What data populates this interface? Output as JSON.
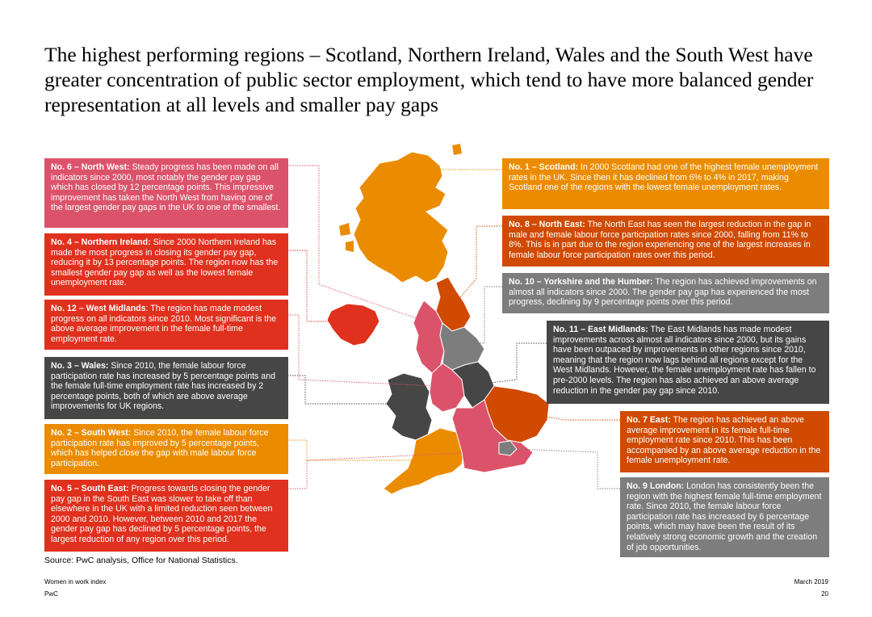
{
  "title": "The highest performing regions – Scotland, Northern Ireland, Wales and the South West have greater concentration of public sector employment, which tend to have more balanced gender representation at all levels and smaller pay gaps",
  "colors": {
    "pink": "#db536a",
    "red": "#e0301e",
    "dark_gray": "#464646",
    "orange": "#eb8c00",
    "rust": "#d04a02",
    "gray": "#7d7d7d"
  },
  "regions": {
    "north_west": {
      "heading": "No. 6 – North West:",
      "body": " Steady progress has been made on all indicators since 2000, most notably the gender pay gap which has closed by 12 percentage points. This impressive improvement has taken the North West from having one of the largest gender pay gaps in the UK to one of the smallest."
    },
    "northern_ireland": {
      "heading": "No. 4 – Northern Ireland:",
      "body": " Since 2000 Northern Ireland has made the most progress in closing its gender pay gap, reducing it by 13 percentage points. The region now has the smallest gender pay gap as well as the lowest female unemployment rate."
    },
    "west_midlands": {
      "heading": "No. 12 – West Midlands",
      "body": ": The region has made modest progress on all indicators since 2010. Most significant is the above average improvement in the female full-time employment rate."
    },
    "wales": {
      "heading": "No. 3 – Wales:",
      "body": " Since 2010, the female labour force participation rate has increased by 5 percentage points and the female full-time employment rate has increased by 2 percentage points, both of which are above average improvements for UK regions."
    },
    "south_west": {
      "heading": "No. 2 – South West:",
      "body": " Since 2010, the female labour force participation rate has improved by 5 percentage points, which has helped close the gap with male labour force participation."
    },
    "south_east": {
      "heading": "No. 5 – South East:",
      "body": " Progress towards closing the gender pay gap in the South East was slower to take off than elsewhere in the UK with a limited reduction seen between 2000 and 2010. However, between 2010 and 2017 the gender pay gap has declined by 5 percentage points, the largest reduction of any region over this period."
    },
    "scotland": {
      "heading": "No. 1 – Scotland:",
      "body": " In 2000 Scotland had one of the highest female unemployment rates in the UK. Since then it has declined from 6% to 4% in 2017, making Scotland one of the regions with the lowest female unemployment rates."
    },
    "north_east": {
      "heading": "No. 8 – North East:",
      "body": " The North East has seen the largest reduction in the gap in male and female labour force participation rates since 2000, falling from 11% to 8%. This is in part due to the region experiencing one of the largest increases in female labour force participation rates over this period."
    },
    "yorkshire": {
      "heading": "No. 10 – Yorkshire and the Humber:",
      "body": " The region has achieved improvements on almost all indicators since 2000. The gender pay gap has experienced the most progress, declining by 9 percentage points over this period."
    },
    "east_midlands": {
      "heading": "No. 11 – East Midlands:",
      "body": " The East Midlands has made modest improvements across almost all indicators since 2000, but its gains have been outpaced by improvements in other regions since 2010, meaning that the region now lags behind all regions except for the West Midlands. However, the female unemployment rate has fallen to pre-2000 levels. The region has also achieved an above average reduction in the gender pay gap since 2010."
    },
    "east": {
      "heading": "No. 7 East:",
      "body": " The region has achieved an above average improvement in its female full-time employment rate since 2010. This has been accompanied by an above average reduction in the female unemployment rate."
    },
    "london": {
      "heading": "No. 9 London:",
      "body": " London has consistently been the region with the highest female full-time employment rate. Since 2010, the female labour force participation rate has increased by 6 percentage points, which may have been the result of its relatively strong economic growth and the creation of job opportunities."
    }
  },
  "source": "Source: PwC analysis, Office for National Statistics.",
  "footer": {
    "publication": "Women in work index",
    "brand": "PwC",
    "date": "March 2019",
    "page": "20"
  }
}
